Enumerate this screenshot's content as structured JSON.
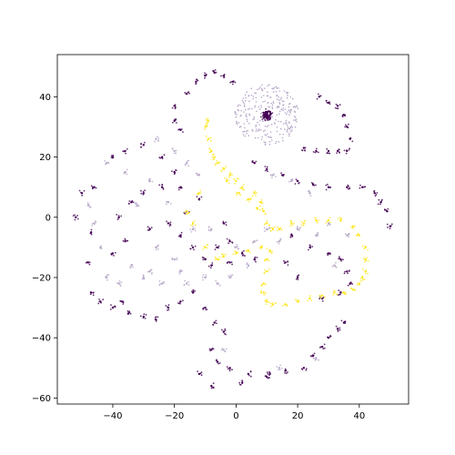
{
  "chart_data": {
    "type": "scatter",
    "title": "",
    "xlabel": "",
    "ylabel": "",
    "xlim": [
      -58,
      56
    ],
    "ylim": [
      -62,
      54
    ],
    "xticks": [
      -40,
      -20,
      0,
      20,
      40
    ],
    "yticks": [
      -60,
      -40,
      -20,
      0,
      20,
      40
    ],
    "xtick_labels": [
      "−40",
      "−20",
      "0",
      "20",
      "40"
    ],
    "ytick_labels": [
      "−60",
      "−40",
      "−20",
      "0",
      "20",
      "40"
    ],
    "grid": false,
    "legend": "none",
    "colors": {
      "dark": "#440154",
      "light": "#b8a8c8",
      "yellow": "#fde725"
    },
    "series": [
      {
        "color": "dark",
        "points": [
          [
            -20,
            37
          ],
          [
            -20,
            32
          ],
          [
            -18,
            29
          ],
          [
            -16,
            41
          ],
          [
            -13,
            45
          ],
          [
            -10,
            47
          ],
          [
            -7,
            48
          ],
          [
            -4,
            47
          ],
          [
            -1,
            45
          ],
          [
            10,
            34
          ],
          [
            11,
            33
          ],
          [
            9,
            33
          ],
          [
            10,
            35
          ],
          [
            9,
            34
          ],
          [
            11,
            35
          ],
          [
            27,
            40
          ],
          [
            30,
            38
          ],
          [
            33,
            37
          ],
          [
            35,
            34
          ],
          [
            36,
            30
          ],
          [
            37,
            26
          ],
          [
            36,
            22
          ],
          [
            22,
            23
          ],
          [
            26,
            22
          ],
          [
            30,
            22
          ],
          [
            33,
            22
          ],
          [
            6,
            18
          ],
          [
            10,
            16
          ],
          [
            15,
            14
          ],
          [
            20,
            12
          ],
          [
            25,
            11
          ],
          [
            30,
            10
          ],
          [
            36,
            10
          ],
          [
            41,
            10
          ],
          [
            45,
            8
          ],
          [
            47,
            5
          ],
          [
            49,
            2
          ],
          [
            50,
            -3
          ],
          [
            -46,
            10
          ],
          [
            -50,
            8
          ],
          [
            -52,
            0
          ],
          [
            -47,
            -5
          ],
          [
            -48,
            -15
          ],
          [
            -47,
            -25
          ],
          [
            -44,
            -28
          ],
          [
            -40,
            -30
          ],
          [
            -37,
            -28
          ],
          [
            -35,
            -32
          ],
          [
            -30,
            -33
          ],
          [
            -26,
            -34
          ],
          [
            -22,
            -30
          ],
          [
            -18,
            -28
          ],
          [
            -14,
            -25
          ],
          [
            -10,
            -30
          ],
          [
            -7,
            -35
          ],
          [
            -4,
            -38
          ],
          [
            -8,
            -44
          ],
          [
            -6,
            -48
          ],
          [
            -2,
            -50
          ],
          [
            4,
            -52
          ],
          [
            10,
            -53
          ],
          [
            16,
            -51
          ],
          [
            22,
            -50
          ],
          [
            25,
            -46
          ],
          [
            28,
            -43
          ],
          [
            30,
            -40
          ],
          [
            33,
            -37
          ],
          [
            35,
            -35
          ],
          [
            -12,
            -52
          ],
          [
            -8,
            -56
          ],
          [
            2,
            -55
          ],
          [
            11,
            -52
          ],
          [
            -40,
            20
          ],
          [
            -36,
            22
          ],
          [
            -30,
            24
          ],
          [
            -24,
            20
          ],
          [
            -20,
            15
          ],
          [
            -24,
            10
          ],
          [
            -30,
            8
          ],
          [
            -34,
            5
          ],
          [
            -38,
            0
          ],
          [
            -36,
            -8
          ],
          [
            -40,
            -12
          ],
          [
            -28,
            -4
          ],
          [
            -22,
            -2
          ],
          [
            -18,
            -6
          ],
          [
            -14,
            -10
          ],
          [
            -10,
            -14
          ],
          [
            -6,
            -10
          ],
          [
            -2,
            -8
          ],
          [
            2,
            -12
          ],
          [
            6,
            -14
          ],
          [
            -4,
            -2
          ],
          [
            -16,
            2
          ],
          [
            -12,
            6
          ],
          [
            -18,
            10
          ],
          [
            -8,
            -16
          ],
          [
            -2,
            -15
          ],
          [
            18,
            -6
          ],
          [
            24,
            -10
          ],
          [
            30,
            -12
          ],
          [
            34,
            -14
          ],
          [
            36,
            -18
          ],
          [
            37,
            -22
          ],
          [
            34,
            -25
          ],
          [
            28,
            -27
          ],
          [
            20,
            -20
          ],
          [
            16,
            -15
          ]
        ]
      },
      {
        "color": "light",
        "points": [
          [
            -42,
            18
          ],
          [
            -36,
            15
          ],
          [
            -28,
            12
          ],
          [
            -22,
            5
          ],
          [
            -26,
            -10
          ],
          [
            -20,
            -14
          ],
          [
            -14,
            -4
          ],
          [
            -8,
            -4
          ],
          [
            0,
            -10
          ],
          [
            4,
            -16
          ],
          [
            -46,
            -2
          ],
          [
            -42,
            -20
          ],
          [
            -38,
            -22
          ],
          [
            -30,
            -20
          ],
          [
            -28,
            -18
          ],
          [
            -24,
            -22
          ],
          [
            -16,
            -22
          ],
          [
            -10,
            -20
          ],
          [
            -6,
            -22
          ],
          [
            -12,
            14
          ],
          [
            -16,
            18
          ],
          [
            -20,
            22
          ],
          [
            -26,
            26
          ],
          [
            12,
            14
          ],
          [
            18,
            12
          ],
          [
            24,
            8
          ],
          [
            10,
            -4
          ],
          [
            14,
            -8
          ],
          [
            20,
            -4
          ],
          [
            26,
            -6
          ],
          [
            32,
            -16
          ],
          [
            30,
            -2
          ],
          [
            36,
            -6
          ],
          [
            14,
            -50
          ],
          [
            26,
            -47
          ],
          [
            -4,
            -44
          ],
          [
            -48,
            4
          ],
          [
            -44,
            -10
          ],
          [
            -34,
            -16
          ],
          [
            -32,
            4
          ],
          [
            -18,
            -18
          ],
          [
            -2,
            -20
          ],
          [
            6,
            -8
          ]
        ]
      },
      {
        "color": "yellow",
        "points": [
          [
            -9,
            32
          ],
          [
            -9,
            26
          ],
          [
            -8,
            22
          ],
          [
            -6,
            18
          ],
          [
            -4,
            16
          ],
          [
            -2,
            14
          ],
          [
            0,
            12
          ],
          [
            2,
            10
          ],
          [
            6,
            8
          ],
          [
            8,
            5
          ],
          [
            9,
            2
          ],
          [
            10,
            -2
          ],
          [
            12,
            -4
          ],
          [
            -10,
            30
          ],
          [
            -7,
            20
          ],
          [
            -3,
            12
          ],
          [
            1,
            8
          ],
          [
            4,
            6
          ],
          [
            7,
            3
          ],
          [
            14,
            -4
          ],
          [
            18,
            -2
          ],
          [
            22,
            -2
          ],
          [
            26,
            -1
          ],
          [
            30,
            -1
          ],
          [
            34,
            -1
          ],
          [
            38,
            -3
          ],
          [
            40,
            -6
          ],
          [
            42,
            -10
          ],
          [
            42,
            -14
          ],
          [
            42,
            -18
          ],
          [
            41,
            -20
          ],
          [
            40,
            -22
          ],
          [
            38,
            -24
          ],
          [
            35,
            -25
          ],
          [
            32,
            -25
          ],
          [
            28,
            -26
          ],
          [
            24,
            -27
          ],
          [
            20,
            -28
          ],
          [
            16,
            -29
          ],
          [
            12,
            -29
          ],
          [
            10,
            -28
          ],
          [
            9,
            -25
          ],
          [
            9,
            -22
          ],
          [
            10,
            -18
          ],
          [
            10,
            -14
          ],
          [
            11,
            -11
          ],
          [
            8,
            -10
          ],
          [
            4,
            -11
          ],
          [
            0,
            -12
          ],
          [
            -4,
            -13
          ],
          [
            -6,
            -14
          ],
          [
            -12,
            8
          ],
          [
            -14,
            -2
          ],
          [
            -10,
            -10
          ],
          [
            -16,
            2
          ]
        ]
      }
    ]
  }
}
